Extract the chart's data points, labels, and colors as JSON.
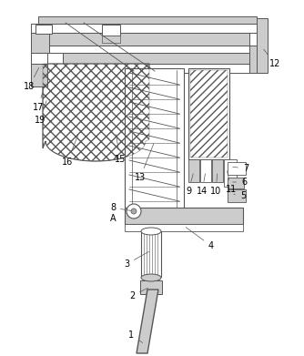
{
  "line_color": "#555555",
  "lgray": "#cccccc",
  "mgray": "#aaaaaa",
  "white": "#ffffff",
  "fontsize": 7.0
}
